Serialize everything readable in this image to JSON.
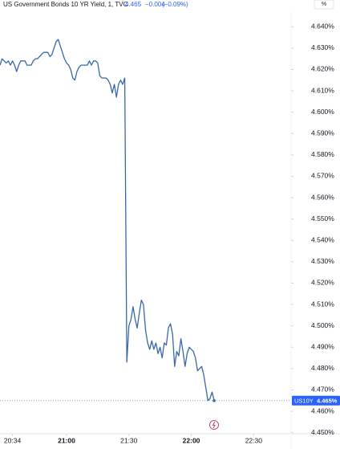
{
  "chart_data": {
    "type": "line",
    "title": "US Government Bonds 10 YR Yield, 1, TVC",
    "last": "4.465",
    "change": "−0.004",
    "change_pct": "(−0.09%)",
    "unit": "%",
    "symbol": "US10Y",
    "last_label": "4.465%",
    "x": [
      "20:28",
      "20:29",
      "20:30",
      "20:31",
      "20:32",
      "20:33",
      "20:34",
      "20:35",
      "20:36",
      "20:37",
      "20:38",
      "20:39",
      "20:40",
      "20:41",
      "20:42",
      "20:43",
      "20:44",
      "20:45",
      "20:46",
      "20:47",
      "20:48",
      "20:49",
      "20:50",
      "20:51",
      "20:52",
      "20:53",
      "20:54",
      "20:55",
      "20:56",
      "20:57",
      "20:58",
      "20:59",
      "21:00",
      "21:01",
      "21:02",
      "21:03",
      "21:04",
      "21:05",
      "21:06",
      "21:07",
      "21:08",
      "21:09",
      "21:10",
      "21:11",
      "21:12",
      "21:13",
      "21:14",
      "21:15",
      "21:16",
      "21:17",
      "21:18",
      "21:19",
      "21:20",
      "21:21",
      "21:22",
      "21:23",
      "21:24",
      "21:25",
      "21:26",
      "21:27",
      "21:28",
      "21:29",
      "21:30",
      "21:31",
      "21:32",
      "21:33",
      "21:34",
      "21:35",
      "21:36",
      "21:37",
      "21:38",
      "21:39",
      "21:40",
      "21:41",
      "21:42",
      "21:43",
      "21:44",
      "21:45",
      "21:46",
      "21:47",
      "21:48",
      "21:49",
      "21:50",
      "21:51",
      "21:52",
      "21:53",
      "21:54",
      "21:55",
      "21:56",
      "21:57",
      "21:58",
      "21:59",
      "22:00",
      "22:01",
      "22:02",
      "22:03",
      "22:04",
      "22:05",
      "22:06",
      "22:07",
      "22:08",
      "22:09",
      "22:10",
      "22:11"
    ],
    "series": [
      {
        "name": "US10Y",
        "color": "#3a67a8",
        "values": [
          4.622,
          4.625,
          4.624,
          4.623,
          4.624,
          4.622,
          4.624,
          4.622,
          4.619,
          4.622,
          4.624,
          4.624,
          4.624,
          4.622,
          4.622,
          4.622,
          4.624,
          4.625,
          4.625,
          4.626,
          4.627,
          4.628,
          4.628,
          4.628,
          4.626,
          4.627,
          4.63,
          4.633,
          4.634,
          4.631,
          4.628,
          4.625,
          4.623,
          4.622,
          4.62,
          4.616,
          4.615,
          4.619,
          4.621,
          4.622,
          4.622,
          4.622,
          4.622,
          4.624,
          4.622,
          4.624,
          4.624,
          4.623,
          4.617,
          4.616,
          4.616,
          4.616,
          4.615,
          4.613,
          4.609,
          4.613,
          4.607,
          4.613,
          4.615,
          4.613,
          4.616,
          4.483,
          4.5,
          4.503,
          4.509,
          4.503,
          4.499,
          4.506,
          4.512,
          4.51,
          4.498,
          4.492,
          4.489,
          4.493,
          4.489,
          4.492,
          4.487,
          4.49,
          4.485,
          4.492,
          4.491,
          4.499,
          4.501,
          4.496,
          4.481,
          4.488,
          4.486,
          4.494,
          4.488,
          4.481,
          4.487,
          4.49,
          4.489,
          4.488,
          4.485,
          4.479,
          4.48,
          4.481,
          4.477,
          4.471,
          4.465,
          4.466,
          4.469,
          4.465
        ]
      }
    ],
    "xlim": [
      "20:28",
      "22:48"
    ],
    "xticks": [
      "20:34",
      "21:00",
      "21:30",
      "22:00",
      "22:30"
    ],
    "ylim": [
      4.4495,
      4.6525
    ],
    "yticks": [
      {
        "value": 4.45,
        "label": "4.450%"
      },
      {
        "value": 4.46,
        "label": "4.460%"
      },
      {
        "value": 4.47,
        "label": "4.470%"
      },
      {
        "value": 4.48,
        "label": "4.480%"
      },
      {
        "value": 4.49,
        "label": "4.490%"
      },
      {
        "value": 4.5,
        "label": "4.500%"
      },
      {
        "value": 4.51,
        "label": "4.510%"
      },
      {
        "value": 4.52,
        "label": "4.520%"
      },
      {
        "value": 4.53,
        "label": "4.530%"
      },
      {
        "value": 4.54,
        "label": "4.540%"
      },
      {
        "value": 4.55,
        "label": "4.550%"
      },
      {
        "value": 4.56,
        "label": "4.560%"
      },
      {
        "value": 4.57,
        "label": "4.570%"
      },
      {
        "value": 4.58,
        "label": "4.580%"
      },
      {
        "value": 4.59,
        "label": "4.590%"
      },
      {
        "value": 4.6,
        "label": "4.600%"
      },
      {
        "value": 4.61,
        "label": "4.610%"
      },
      {
        "value": 4.62,
        "label": "4.620%"
      },
      {
        "value": 4.63,
        "label": "4.630%"
      },
      {
        "value": 4.64,
        "label": "4.640%"
      }
    ],
    "grid": false
  }
}
